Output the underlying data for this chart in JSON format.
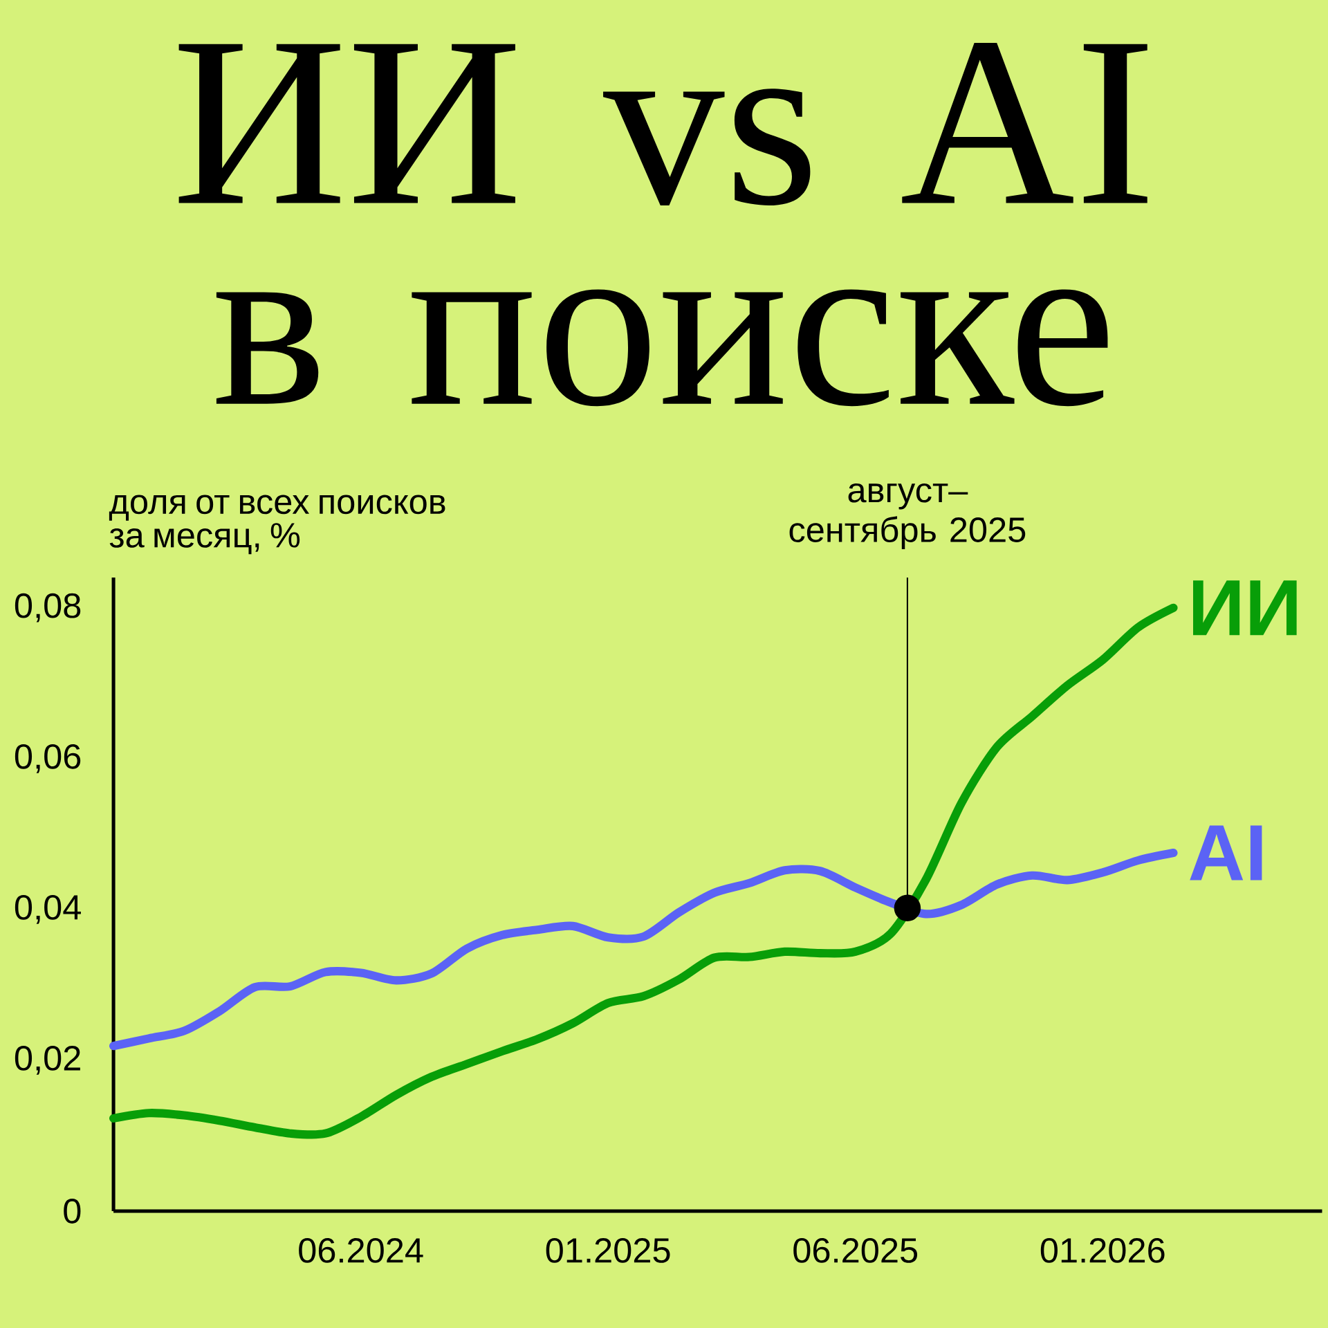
{
  "chart_data": {
    "type": "line",
    "title": "ИИ vs AI в поиске",
    "ylabel": "доля от всех поисков за месяц, %",
    "annotations": [
      {
        "text": "август–сентябрь 2025",
        "y": 0.0402
      }
    ],
    "categories": [
      null,
      null,
      null,
      null,
      null,
      null,
      null,
      "06.2024",
      null,
      null,
      null,
      null,
      null,
      null,
      "01.2025",
      null,
      null,
      null,
      null,
      null,
      null,
      "06.2025",
      null,
      null,
      null,
      null,
      null,
      null,
      "01.2026",
      null,
      null
    ],
    "ylim": [
      0,
      0.084
    ],
    "yticks": [
      0,
      {
        "value": 0.02,
        "label": "0,02"
      },
      {
        "value": 0.04,
        "label": "0,04"
      },
      {
        "value": 0.06,
        "label": "0,06"
      },
      {
        "value": 0.08,
        "label": "0,08"
      }
    ],
    "line_style": "solid",
    "marker": "none",
    "series": [
      {
        "name": "ИИ",
        "color": "#089e08",
        "values": [
          0.0123,
          0.013,
          0.0127,
          0.012,
          0.0111,
          0.0103,
          0.0103,
          0.0125,
          0.0154,
          0.0178,
          0.0195,
          0.0212,
          0.0228,
          0.0249,
          0.0276,
          0.0285,
          0.0307,
          0.0336,
          0.0337,
          0.0344,
          0.0342,
          0.0344,
          0.0368,
          0.044,
          0.0541,
          0.0615,
          0.0656,
          0.0697,
          0.0731,
          0.0774,
          0.08
        ]
      },
      {
        "name": "AI",
        "color": "#5b63f5",
        "values": [
          0.0219,
          0.0229,
          0.0239,
          0.0265,
          0.0297,
          0.0298,
          0.0317,
          0.0316,
          0.0306,
          0.0315,
          0.0348,
          0.0366,
          0.0373,
          0.0378,
          0.0363,
          0.0364,
          0.0396,
          0.0422,
          0.0435,
          0.0452,
          0.0451,
          0.0429,
          0.0409,
          0.0394,
          0.0406,
          0.0433,
          0.0445,
          0.0439,
          0.0449,
          0.0465,
          0.0475
        ]
      }
    ]
  }
}
